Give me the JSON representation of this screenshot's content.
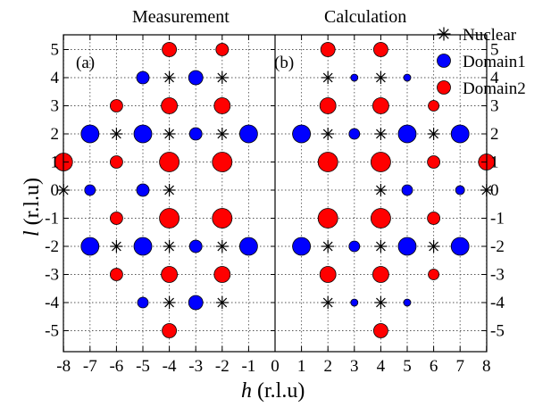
{
  "chart_data": [
    {
      "panel": "(a)",
      "title": "Measurement",
      "type": "scatter",
      "xlabel_var": "h",
      "xlabel_unit": "(r.l.u)",
      "ylabel_var": "l",
      "ylabel_unit": "(r.l.u)",
      "xlim": [
        -8.5,
        0
      ],
      "ylim": [
        -5.6,
        5.6
      ],
      "x_ticks": [
        "-8",
        "-7",
        "-6",
        "-5",
        "-4",
        "-3",
        "-2",
        "-1"
      ],
      "y_ticks": [
        "5",
        "4",
        "3",
        "2",
        "1",
        "0",
        "-1",
        "-2",
        "-3",
        "-4",
        "-5"
      ],
      "grid": true,
      "series": [
        {
          "name": "Nuclear",
          "marker": "asterisk",
          "points": [
            [
              -4,
              4
            ],
            [
              -2,
              4
            ],
            [
              -6,
              2
            ],
            [
              -4,
              2
            ],
            [
              -2,
              2
            ],
            [
              -8,
              0
            ],
            [
              -4,
              0
            ],
            [
              -6,
              -2
            ],
            [
              -4,
              -2
            ],
            [
              -2,
              -2
            ],
            [
              -4,
              -4
            ],
            [
              -2,
              -4
            ]
          ]
        },
        {
          "name": "Domain1",
          "marker": "circle",
          "points": [
            [
              -5,
              4,
              7
            ],
            [
              -3,
              4,
              8
            ],
            [
              -7,
              2,
              10
            ],
            [
              -5,
              2,
              10
            ],
            [
              -3,
              2,
              7
            ],
            [
              -1,
              2,
              10
            ],
            [
              -7,
              0,
              6
            ],
            [
              -5,
              0,
              7
            ],
            [
              -7,
              -2,
              10
            ],
            [
              -5,
              -2,
              10
            ],
            [
              -3,
              -2,
              7
            ],
            [
              -1,
              -2,
              10
            ],
            [
              -5,
              -4,
              6
            ],
            [
              -3,
              -4,
              8
            ]
          ]
        },
        {
          "name": "Domain2",
          "marker": "circle",
          "points": [
            [
              -4,
              5,
              8
            ],
            [
              -2,
              5,
              7
            ],
            [
              -6,
              3,
              7
            ],
            [
              -4,
              3,
              9
            ],
            [
              -2,
              3,
              9
            ],
            [
              -8,
              1,
              10
            ],
            [
              -6,
              1,
              7
            ],
            [
              -4,
              1,
              11
            ],
            [
              -2,
              1,
              11
            ],
            [
              -6,
              -1,
              7
            ],
            [
              -4,
              -1,
              11
            ],
            [
              -2,
              -1,
              11
            ],
            [
              -6,
              -3,
              7
            ],
            [
              -4,
              -3,
              9
            ],
            [
              -2,
              -3,
              9
            ],
            [
              -4,
              -5,
              8
            ]
          ]
        }
      ]
    },
    {
      "panel": "(b)",
      "title": "Calculation",
      "type": "scatter",
      "xlim": [
        0,
        8.5
      ],
      "ylim": [
        -5.6,
        5.6
      ],
      "x_ticks": [
        "0",
        "1",
        "2",
        "3",
        "4",
        "5",
        "6",
        "7",
        "8"
      ],
      "y_ticks": [
        "5",
        "4",
        "3",
        "2",
        "1",
        "0",
        "-1",
        "-2",
        "-3",
        "-4",
        "-5"
      ],
      "grid": true,
      "series": [
        {
          "name": "Nuclear",
          "marker": "asterisk",
          "points": [
            [
              2,
              4
            ],
            [
              4,
              4
            ],
            [
              2,
              2
            ],
            [
              4,
              2
            ],
            [
              6,
              2
            ],
            [
              4,
              0
            ],
            [
              8,
              0
            ],
            [
              2,
              -2
            ],
            [
              4,
              -2
            ],
            [
              6,
              -2
            ],
            [
              2,
              -4
            ],
            [
              4,
              -4
            ]
          ]
        },
        {
          "name": "Domain1",
          "marker": "circle",
          "points": [
            [
              3,
              4,
              4
            ],
            [
              5,
              4,
              4
            ],
            [
              1,
              2,
              10
            ],
            [
              3,
              2,
              6
            ],
            [
              5,
              2,
              10
            ],
            [
              7,
              2,
              10
            ],
            [
              5,
              0,
              6
            ],
            [
              7,
              0,
              5
            ],
            [
              1,
              -2,
              10
            ],
            [
              3,
              -2,
              6
            ],
            [
              5,
              -2,
              10
            ],
            [
              7,
              -2,
              10
            ],
            [
              3,
              -4,
              4
            ],
            [
              5,
              -4,
              4
            ]
          ]
        },
        {
          "name": "Domain2",
          "marker": "circle",
          "points": [
            [
              2,
              5,
              8
            ],
            [
              4,
              5,
              8
            ],
            [
              2,
              3,
              9
            ],
            [
              4,
              3,
              9
            ],
            [
              6,
              3,
              6
            ],
            [
              2,
              1,
              11
            ],
            [
              4,
              1,
              11
            ],
            [
              6,
              1,
              7
            ],
            [
              8,
              1,
              9
            ],
            [
              2,
              -1,
              11
            ],
            [
              4,
              -1,
              11
            ],
            [
              6,
              -1,
              7
            ],
            [
              2,
              -3,
              9
            ],
            [
              4,
              -3,
              9
            ],
            [
              6,
              -3,
              6
            ],
            [
              4,
              -5,
              8
            ]
          ]
        }
      ]
    }
  ],
  "legend": {
    "placement": "top-right",
    "items": [
      {
        "label": "Nuclear",
        "marker": "asterisk"
      },
      {
        "label": "Domain1",
        "marker": "circle",
        "color": "#0000ff"
      },
      {
        "label": "Domain2",
        "marker": "circle",
        "color": "#ff0000"
      }
    ]
  },
  "colors": {
    "domain1": "#0000ff",
    "domain2": "#ff0000",
    "grid": "#555555",
    "axis": "#000000"
  }
}
